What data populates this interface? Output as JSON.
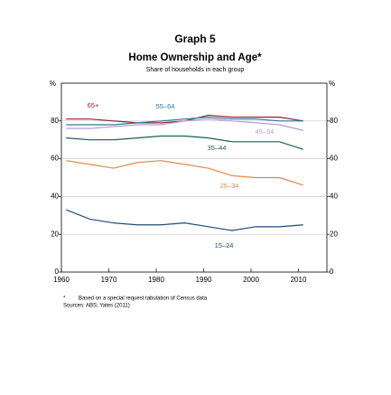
{
  "chart_data": {
    "type": "line",
    "title": "Graph 5",
    "subtitle": "Home Ownership and Age*",
    "note": "Share of households in each group",
    "unit": "%",
    "footnote": "Based on a special request tabulation of Census data",
    "footnote_marker": "*",
    "source": "Sources: ABS; Yates (2011)",
    "x": [
      1961,
      1966,
      1971,
      1976,
      1981,
      1986,
      1991,
      1996,
      2001,
      2006,
      2011
    ],
    "xlim": [
      1960,
      2016
    ],
    "xticks": [
      1960,
      1970,
      1980,
      1990,
      2000,
      2010
    ],
    "ylim": [
      0,
      100
    ],
    "yticks": [
      0,
      20,
      40,
      60,
      80
    ],
    "grid": true,
    "series": [
      {
        "name": "65+",
        "color": "#9b1c31",
        "values": [
          81,
          81,
          80,
          79,
          79,
          80,
          83,
          82,
          82,
          82,
          80
        ]
      },
      {
        "name": "55–64",
        "color": "#2a7a9b",
        "values": [
          78,
          78,
          78,
          79,
          80,
          81,
          82,
          81,
          81,
          80,
          80
        ]
      },
      {
        "name": "45–54",
        "color": "#b99ad0",
        "values": [
          76,
          76,
          77,
          78,
          78,
          80,
          81,
          80,
          79,
          78,
          75
        ]
      },
      {
        "name": "35–44",
        "color": "#1d5c5c",
        "values": [
          71,
          70,
          70,
          71,
          72,
          72,
          71,
          69,
          69,
          69,
          65
        ]
      },
      {
        "name": "25–34",
        "color": "#e0894a",
        "values": [
          59,
          57,
          55,
          58,
          59,
          57,
          55,
          51,
          50,
          50,
          46
        ]
      },
      {
        "name": "15–24",
        "color": "#1f4e79",
        "values": [
          33,
          28,
          26,
          25,
          25,
          26,
          24,
          22,
          24,
          24,
          25
        ]
      }
    ]
  }
}
